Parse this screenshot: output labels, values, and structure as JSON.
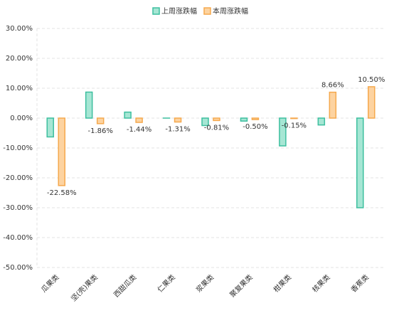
{
  "chart_data": {
    "type": "bar",
    "categories": [
      "瓜果类",
      "坚(壳)果类",
      "西甜瓜类",
      "仁果类",
      "浆果类",
      "聚复果类",
      "柑果类",
      "核果类",
      "香蕉类"
    ],
    "series": [
      {
        "name": "上周涨跌幅",
        "color": "#3dbf9f",
        "fill": "#a6e6d4",
        "values": [
          -6.3,
          8.7,
          2.0,
          0,
          -2.5,
          -1.0,
          -9.3,
          -2.3,
          -30.0
        ]
      },
      {
        "name": "本周涨跌幅",
        "color": "#f5a94e",
        "fill": "#fdd3a0",
        "values": [
          -22.58,
          -1.86,
          -1.44,
          -1.31,
          -0.81,
          -0.5,
          -0.15,
          8.66,
          10.5
        ],
        "value_labels": [
          "-22.58%",
          "-1.86%",
          "-1.44%",
          "-1.31%",
          "-0.81%",
          "-0.50%",
          "-0.15%",
          "8.66%",
          "10.50%"
        ]
      }
    ],
    "ylim": [
      -50,
      30
    ],
    "yticks": [
      {
        "value": -50,
        "label": "-50.00%"
      },
      {
        "value": -40,
        "label": "-40.00%"
      },
      {
        "value": -30,
        "label": "-30.00%"
      },
      {
        "value": -20,
        "label": "-20.00%"
      },
      {
        "value": -10,
        "label": "-10.00%"
      },
      {
        "value": 0,
        "label": "0.00%"
      },
      {
        "value": 10,
        "label": "10.00%"
      },
      {
        "value": 20,
        "label": "20.00%"
      },
      {
        "value": 30,
        "label": "30.00%"
      }
    ],
    "grid": true
  }
}
